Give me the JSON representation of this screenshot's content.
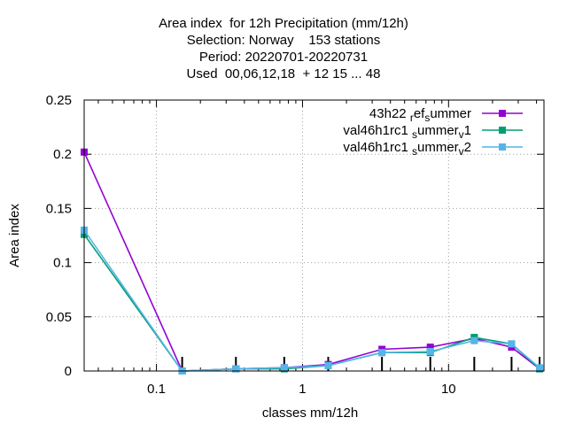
{
  "chart_data": {
    "type": "line",
    "title_lines": [
      "Area index  for 12h Precipitation (mm/12h)",
      "Selection: Norway    153 stations",
      "Period: 20220701-20220731",
      "Used  00,06,12,18  + 12 15 ... 48"
    ],
    "xlabel": "classes mm/12h",
    "ylabel": "Area index",
    "x_scale": "log",
    "xlim": [
      0.032,
      45
    ],
    "ylim": [
      0,
      0.25
    ],
    "x_ticks": [
      {
        "value": 0.1,
        "label": "0.1"
      },
      {
        "value": 1,
        "label": "1"
      },
      {
        "value": 10,
        "label": "10"
      }
    ],
    "y_ticks": [
      {
        "value": 0,
        "label": "0"
      },
      {
        "value": 0.05,
        "label": "0.05"
      },
      {
        "value": 0.1,
        "label": "0.1"
      },
      {
        "value": 0.15,
        "label": "0.15"
      },
      {
        "value": 0.2,
        "label": "0.2"
      },
      {
        "value": 0.25,
        "label": "0.25"
      }
    ],
    "class_markers": [
      0.15,
      0.35,
      0.75,
      1.5,
      3.5,
      7.5,
      15,
      27,
      42
    ],
    "grid": true,
    "legend_position": "top-right",
    "series": [
      {
        "name_parts": [
          [
            "43h22 ",
            "n"
          ],
          [
            "r",
            "sub"
          ],
          [
            "ef",
            "n"
          ],
          [
            "s",
            "sub"
          ],
          [
            "ummer",
            "n"
          ]
        ],
        "color": "#9400d3",
        "x": [
          0.032,
          0.15,
          0.35,
          0.75,
          1.5,
          3.5,
          7.5,
          15,
          27,
          42
        ],
        "y": [
          0.202,
          0.0,
          0.002,
          0.003,
          0.006,
          0.02,
          0.022,
          0.03,
          0.022,
          0.002
        ]
      },
      {
        "name_parts": [
          [
            "val46h1rc1 ",
            "n"
          ],
          [
            "s",
            "sub"
          ],
          [
            "ummer",
            "n"
          ],
          [
            "v",
            "sub"
          ],
          [
            "1",
            "n"
          ]
        ],
        "color": "#009e73",
        "x": [
          0.032,
          0.15,
          0.35,
          0.75,
          1.5,
          3.5,
          7.5,
          15,
          27,
          42
        ],
        "y": [
          0.126,
          0.0,
          0.002,
          0.002,
          0.005,
          0.017,
          0.017,
          0.031,
          0.025,
          0.002
        ]
      },
      {
        "name_parts": [
          [
            "val46h1rc1 ",
            "n"
          ],
          [
            "s",
            "sub"
          ],
          [
            "ummer",
            "n"
          ],
          [
            "v",
            "sub"
          ],
          [
            "2",
            "n"
          ]
        ],
        "color": "#56b4e9",
        "x": [
          0.032,
          0.15,
          0.35,
          0.75,
          1.5,
          3.5,
          7.5,
          15,
          27,
          42
        ],
        "y": [
          0.13,
          0.0,
          0.002,
          0.003,
          0.005,
          0.017,
          0.018,
          0.028,
          0.025,
          0.003
        ]
      }
    ]
  }
}
